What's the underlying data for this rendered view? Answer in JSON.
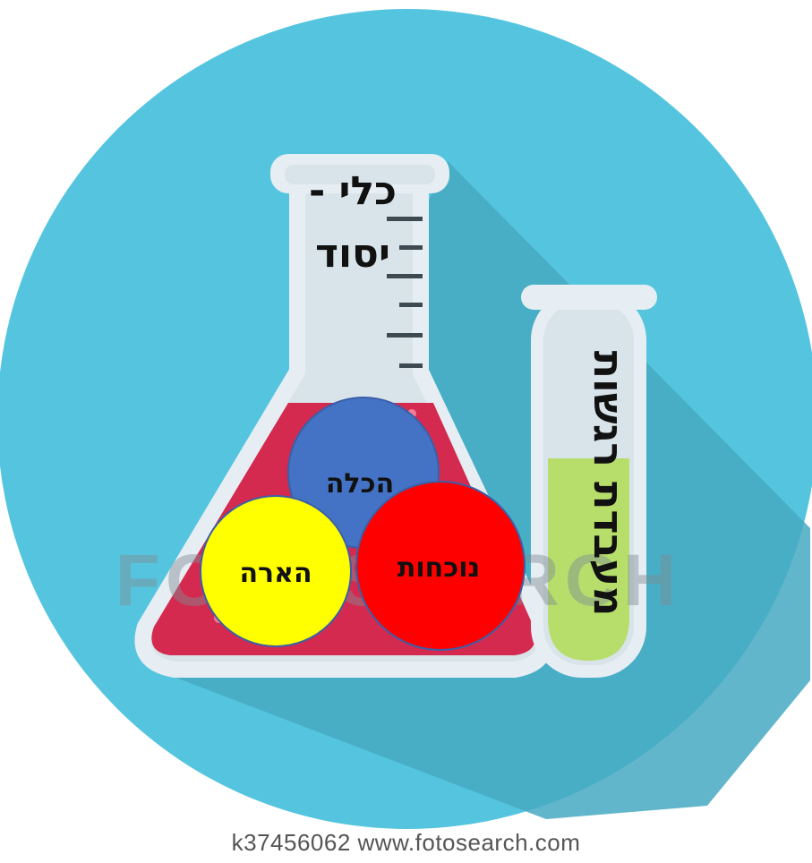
{
  "labels": {
    "base_tool_line1": "כלי -",
    "base_tool_line2": "יסוד",
    "lab": "מעבדת רגשות",
    "acceptance": "הכלה",
    "illumination": "הארה",
    "presence": "נוכחות"
  },
  "watermark": "FOTOSEARCH",
  "footer": "k37456062   www.fotosearch.com",
  "colors": {
    "background_circle": "#55C5DF",
    "shadow": "#46A9C2",
    "flask_outline": "#E7EEF3",
    "flask_glass": "#D9E4EA",
    "liquid_red": "#D42A4F",
    "tube_liquid": "#B7DD6B",
    "circle_blue": "#4472C4",
    "circle_yellow": "#FFFF00",
    "circle_red": "#FF0000"
  }
}
